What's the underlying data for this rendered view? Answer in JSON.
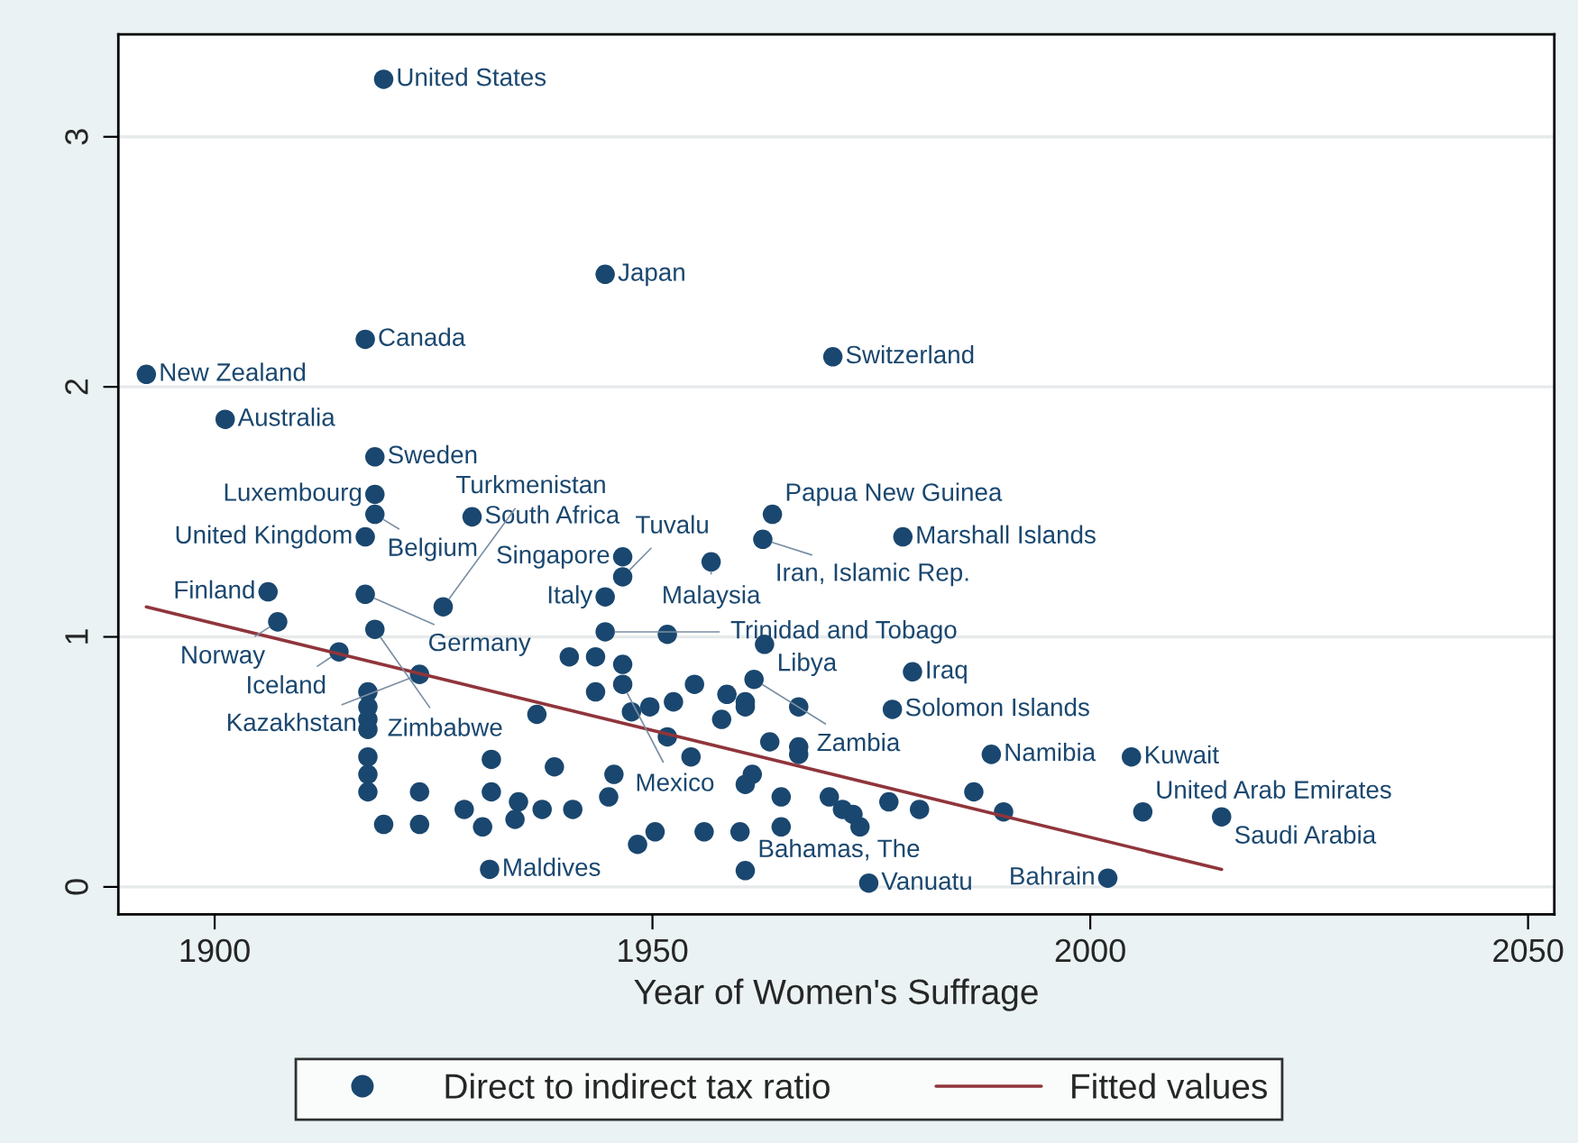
{
  "chart_data": {
    "type": "scatter",
    "xlabel": "Year of Women's Suffrage",
    "xlim": [
      1889,
      2053
    ],
    "ylim": [
      -0.11,
      3.41
    ],
    "xticks": [
      1900,
      1950,
      2000,
      2050
    ],
    "yticks": [
      0,
      1,
      2,
      3
    ],
    "grid": "y",
    "legend": "bottom",
    "series": [
      {
        "name": "Direct to indirect tax ratio",
        "type": "scatter",
        "marker": "circle",
        "color": "#1a476f",
        "x": [
          1919.3,
          1944.6,
          1917.2,
          1892.2,
          1970.6,
          1901.2,
          1918.3,
          1918.3,
          1918.3,
          1929.4,
          1917.2,
          1963.7,
          1962.6,
          1978.6,
          1946.6,
          1956.7,
          1946.6,
          1906.1,
          1917.2,
          1944.6,
          1926.1,
          1907.2,
          1918.3,
          1914.2,
          1944.6,
          1962.8,
          1923.4,
          1946.6,
          1961.6,
          1979.7,
          1977.4,
          1988.7,
          2004.7,
          2006.0,
          2015.0,
          1931.4,
          1960.6,
          1974.7,
          2002.0,
          1917.5,
          1917.5,
          1917.5,
          1917.5,
          1917.5,
          1917.5,
          1917.5,
          1919.3,
          1923.4,
          1923.4,
          1928.5,
          1930.6,
          1931.6,
          1931.6,
          1934.7,
          1934.3,
          1936.8,
          1937.4,
          1938.8,
          1940.9,
          1940.5,
          1943.5,
          1943.5,
          1945.0,
          1945.6,
          1946.6,
          1947.6,
          1948.3,
          1949.7,
          1950.3,
          1951.7,
          1951.7,
          1952.4,
          1954.4,
          1954.8,
          1955.9,
          1957.9,
          1958.5,
          1960.6,
          1960.6,
          1963.4,
          1966.7,
          1966.7,
          1970.2,
          1972.9,
          1960.6,
          1966.7,
          1961.4,
          1964.7,
          1971.7,
          1977.0,
          1980.5,
          1986.7,
          1990.1,
          1973.7,
          1964.7,
          1960.0
        ],
        "values": [
          3.23,
          2.45,
          2.19,
          2.05,
          2.12,
          1.87,
          1.72,
          1.57,
          1.49,
          1.48,
          1.4,
          1.49,
          1.39,
          1.4,
          1.32,
          1.3,
          1.24,
          1.18,
          1.17,
          1.16,
          1.12,
          1.06,
          1.03,
          0.94,
          1.02,
          0.97,
          0.85,
          0.81,
          0.83,
          0.86,
          0.71,
          0.53,
          0.52,
          0.3,
          0.28,
          0.07,
          0.065,
          0.015,
          0.035,
          0.78,
          0.72,
          0.67,
          0.63,
          0.52,
          0.45,
          0.38,
          0.25,
          0.38,
          0.25,
          0.31,
          0.24,
          0.51,
          0.38,
          0.34,
          0.27,
          0.69,
          0.31,
          0.48,
          0.31,
          0.92,
          0.92,
          0.78,
          0.36,
          0.45,
          0.89,
          0.7,
          0.17,
          0.72,
          0.22,
          1.01,
          0.6,
          0.74,
          0.52,
          0.81,
          0.22,
          0.67,
          0.77,
          0.72,
          0.41,
          0.58,
          0.72,
          0.53,
          0.36,
          0.29,
          0.74,
          0.56,
          0.45,
          0.36,
          0.31,
          0.34,
          0.31,
          0.38,
          0.3,
          0.24,
          0.24,
          0.22
        ]
      },
      {
        "name": "Fitted values",
        "type": "line",
        "color": "#90353b",
        "x": [
          1892.2,
          2015.0
        ],
        "values": [
          1.12,
          0.07
        ]
      }
    ],
    "annotations": [
      {
        "text": "United States",
        "x": 1919.3,
        "y": 3.23
      },
      {
        "text": "Japan",
        "x": 1944.6,
        "y": 2.45
      },
      {
        "text": "Canada",
        "x": 1917.2,
        "y": 2.19
      },
      {
        "text": "New Zealand",
        "x": 1892.2,
        "y": 2.05
      },
      {
        "text": "Switzerland",
        "x": 1970.6,
        "y": 2.12
      },
      {
        "text": "Australia",
        "x": 1901.2,
        "y": 1.87
      },
      {
        "text": "Sweden",
        "x": 1918.3,
        "y": 1.72
      },
      {
        "text": "Luxembourg",
        "x": 1918.3,
        "y": 1.57
      },
      {
        "text": "Belgium",
        "x": 1918.3,
        "y": 1.49
      },
      {
        "text": "South Africa",
        "x": 1929.4,
        "y": 1.48
      },
      {
        "text": "United Kingdom",
        "x": 1917.2,
        "y": 1.4
      },
      {
        "text": "Papua New Guinea",
        "x": 1963.7,
        "y": 1.49
      },
      {
        "text": "Iran, Islamic Rep.",
        "x": 1962.6,
        "y": 1.39
      },
      {
        "text": "Marshall Islands",
        "x": 1978.6,
        "y": 1.4
      },
      {
        "text": "Singapore",
        "x": 1946.6,
        "y": 1.32
      },
      {
        "text": "Malaysia",
        "x": 1956.7,
        "y": 1.3
      },
      {
        "text": "Tuvalu",
        "x": 1946.6,
        "y": 1.24
      },
      {
        "text": "Finland",
        "x": 1906.1,
        "y": 1.18
      },
      {
        "text": "Germany",
        "x": 1917.2,
        "y": 1.17
      },
      {
        "text": "Italy",
        "x": 1944.6,
        "y": 1.16
      },
      {
        "text": "Turkmenistan",
        "x": 1926.1,
        "y": 1.12
      },
      {
        "text": "Norway",
        "x": 1907.2,
        "y": 1.06
      },
      {
        "text": "Zimbabwe",
        "x": 1918.3,
        "y": 1.03
      },
      {
        "text": "Iceland",
        "x": 1914.2,
        "y": 0.94
      },
      {
        "text": "Trinidad and Tobago",
        "x": 1944.6,
        "y": 1.02
      },
      {
        "text": "Libya",
        "x": 1962.8,
        "y": 0.97
      },
      {
        "text": "Kazakhstan",
        "x": 1923.4,
        "y": 0.85
      },
      {
        "text": "Mexico",
        "x": 1946.6,
        "y": 0.81
      },
      {
        "text": "Zambia",
        "x": 1961.6,
        "y": 0.83
      },
      {
        "text": "Iraq",
        "x": 1979.7,
        "y": 0.86
      },
      {
        "text": "Solomon Islands",
        "x": 1977.4,
        "y": 0.71
      },
      {
        "text": "Namibia",
        "x": 1988.7,
        "y": 0.53
      },
      {
        "text": "Kuwait",
        "x": 2004.7,
        "y": 0.52
      },
      {
        "text": "United Arab Emirates",
        "x": 2006.0,
        "y": 0.3
      },
      {
        "text": "Saudi Arabia",
        "x": 2015.0,
        "y": 0.28
      },
      {
        "text": "Maldives",
        "x": 1931.4,
        "y": 0.07
      },
      {
        "text": "Bahamas, The",
        "x": 1960.6,
        "y": 0.065
      },
      {
        "text": "Vanuatu",
        "x": 1974.7,
        "y": 0.015
      },
      {
        "text": "Bahrain",
        "x": 2002.0,
        "y": 0.035
      }
    ]
  }
}
